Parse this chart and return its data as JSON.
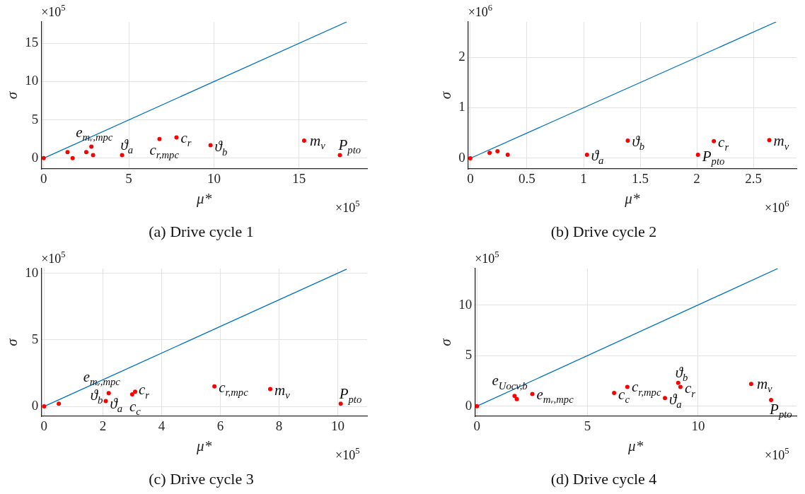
{
  "chart_data": [
    {
      "type": "scatter",
      "title": "(a) Drive cycle 1",
      "xlabel": "μ*",
      "ylabel": "σ",
      "xlim": [
        -0.15,
        19
      ],
      "ylim": [
        -1.4,
        17.8
      ],
      "xticks": [
        0,
        5,
        10,
        15
      ],
      "yticks": [
        0,
        5,
        10,
        15
      ],
      "grid": true,
      "marker": "circle",
      "series": [
        {
          "color": "#ff0000",
          "x": [
            0,
            1.4,
            2.5,
            2.8,
            2.9,
            1.7,
            4.6,
            6.8,
            7.8,
            9.8,
            15.3,
            17.4
          ],
          "values": [
            0,
            0.8,
            0.8,
            1.5,
            0.4,
            0,
            0.4,
            2.5,
            2.7,
            1.7,
            2.3,
            0.4
          ]
        },
        {
          "type": "line",
          "color": "#0072bd",
          "marker": "none",
          "x": [
            0,
            17.8
          ],
          "values": [
            0,
            17.8
          ]
        }
      ],
      "annotations": [
        "×10$^{5}$",
        "×10$^{5}$",
        {
          "text": "e$_{mᵥ,mpc}$",
          "x": 2.8,
          "y": 1.5
        },
        {
          "text": "ϑ$_{a}$",
          "x": 4.6,
          "y": 0.4
        },
        {
          "text": "c$_{r,mpc}$",
          "x": 6.8,
          "y": 2.5
        },
        {
          "text": "c$_{r}$",
          "x": 7.8,
          "y": 2.7
        },
        {
          "text": "ϑ$_{b}$",
          "x": 9.8,
          "y": 1.7
        },
        {
          "text": "m$_{v}$",
          "x": 15.3,
          "y": 2.3
        },
        {
          "text": "P$_{pto}$",
          "x": 17.4,
          "y": 0.4
        }
      ]
    },
    {
      "type": "scatter",
      "title": "(b) Drive cycle 2",
      "xlabel": "μ*",
      "ylabel": "σ",
      "xlim": [
        -0.02,
        2.88
      ],
      "ylim": [
        -0.21,
        2.7
      ],
      "xticks": [
        0,
        0.5,
        1,
        1.5,
        2,
        2.5
      ],
      "yticks": [
        0,
        1,
        2
      ],
      "grid": true,
      "marker": "circle",
      "series": [
        {
          "color": "#ff0000",
          "x": [
            0,
            0.17,
            0.24,
            0.33,
            1.03,
            1.39,
            2.01,
            2.15,
            2.64
          ],
          "values": [
            0,
            0.11,
            0.14,
            0.07,
            0.07,
            0.35,
            0.07,
            0.34,
            0.36
          ]
        },
        {
          "type": "line",
          "color": "#0072bd",
          "marker": "none",
          "x": [
            0,
            2.7
          ],
          "values": [
            0,
            2.7
          ]
        }
      ],
      "annotations": [
        "×10$^{6}$",
        "×10$^{6}$",
        {
          "text": "ϑ$_{a}$",
          "x": 1.03,
          "y": 0.07
        },
        {
          "text": "ϑ$_{b}$",
          "x": 1.39,
          "y": 0.35
        },
        {
          "text": "P$_{pto}$",
          "x": 2.01,
          "y": 0.07
        },
        {
          "text": "c$_{r}$",
          "x": 2.15,
          "y": 0.34
        },
        {
          "text": "m$_{v}$",
          "x": 2.64,
          "y": 0.36
        }
      ]
    },
    {
      "type": "scatter",
      "title": "(c) Drive cycle 3",
      "xlabel": "μ*",
      "ylabel": "σ",
      "xlim": [
        -0.1,
        11
      ],
      "ylim": [
        -0.74,
        10.35
      ],
      "xticks": [
        0,
        2,
        4,
        6,
        8,
        10
      ],
      "yticks": [
        0,
        5,
        10
      ],
      "grid": true,
      "marker": "circle",
      "series": [
        {
          "color": "#ff0000",
          "x": [
            0,
            0.5,
            2.2,
            2.1,
            3.0,
            3.1,
            5.8,
            7.7,
            10.1
          ],
          "values": [
            0,
            0.2,
            1.0,
            0.4,
            0.9,
            1.1,
            1.5,
            1.3,
            0.2
          ]
        },
        {
          "type": "line",
          "color": "#0072bd",
          "marker": "none",
          "x": [
            0,
            10.3
          ],
          "values": [
            0,
            10.3
          ]
        }
      ],
      "annotations": [
        "×10$^{5}$",
        "×10$^{5}$",
        {
          "text": "e$_{mᵥ,mpc}$",
          "x": 2.2,
          "y": 1.0
        },
        {
          "text": "ϑ$_{b}$",
          "x": 2.2,
          "y": 1.0
        },
        {
          "text": "ϑ$_{a}$",
          "x": 2.1,
          "y": 0.4
        },
        {
          "text": "c$_{r}$",
          "x": 3.1,
          "y": 1.1
        },
        {
          "text": "c$_{c}$",
          "x": 3.0,
          "y": 0.9
        },
        {
          "text": "c$_{r,mpc}$",
          "x": 5.8,
          "y": 1.5
        },
        {
          "text": "m$_{v}$",
          "x": 7.7,
          "y": 1.3
        },
        {
          "text": "P$_{pto}$",
          "x": 10.1,
          "y": 0.2
        }
      ]
    },
    {
      "type": "scatter",
      "title": "(d) Drive cycle 4",
      "xlabel": "μ*",
      "ylabel": "σ",
      "xlim": [
        -0.1,
        14.45
      ],
      "ylim": [
        -1.0,
        13.6
      ],
      "xticks": [
        0,
        5,
        10
      ],
      "yticks": [
        0,
        5,
        10
      ],
      "grid": true,
      "marker": "circle",
      "series": [
        {
          "color": "#ff0000",
          "x": [
            0,
            1.7,
            1.8,
            2.5,
            6.2,
            6.8,
            8.5,
            9.1,
            9.2,
            12.4,
            13.3
          ],
          "values": [
            0,
            1.0,
            0.7,
            1.2,
            1.3,
            1.9,
            0.8,
            2.3,
            1.9,
            2.2,
            0.6
          ]
        },
        {
          "type": "line",
          "color": "#0072bd",
          "marker": "none",
          "x": [
            0,
            13.6
          ],
          "values": [
            0,
            13.6
          ]
        }
      ],
      "annotations": [
        "×10$^{5}$",
        "×10$^{5}$",
        {
          "text": "e$_{Uocv,b}$",
          "x": 1.7,
          "y": 1.0
        },
        {
          "text": "e$_{mᵥ,mpc}$",
          "x": 2.5,
          "y": 1.2
        },
        {
          "text": "c$_{c}$",
          "x": 6.2,
          "y": 1.3
        },
        {
          "text": "c$_{r,mpc}$",
          "x": 6.8,
          "y": 1.9
        },
        {
          "text": "ϑ$_{b}$",
          "x": 9.1,
          "y": 2.3
        },
        {
          "text": "c$_{r}$",
          "x": 9.2,
          "y": 1.9
        },
        {
          "text": "ϑ$_{a}$",
          "x": 8.5,
          "y": 0.8
        },
        {
          "text": "m$_{v}$",
          "x": 12.4,
          "y": 2.2
        },
        {
          "text": "P$_{pto}$",
          "x": 13.3,
          "y": 0.6
        }
      ]
    }
  ]
}
